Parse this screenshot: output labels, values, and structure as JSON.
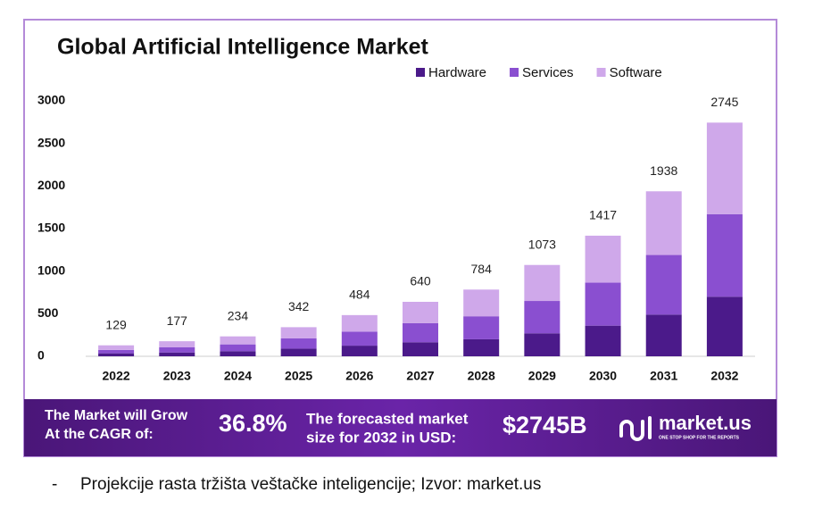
{
  "chart_data": {
    "type": "stacked_bar",
    "title": "Global Artificial Intelligence Market",
    "categories": [
      "2022",
      "2023",
      "2024",
      "2025",
      "2026",
      "2027",
      "2028",
      "2029",
      "2030",
      "2031",
      "2032"
    ],
    "series": [
      {
        "name": "Hardware",
        "color": "#4b1a8a",
        "values": [
          35,
          45,
          60,
          90,
          125,
          165,
          200,
          270,
          360,
          490,
          700
        ]
      },
      {
        "name": "Services",
        "color": "#8a4fd0",
        "values": [
          40,
          60,
          80,
          120,
          165,
          225,
          270,
          380,
          505,
          700,
          970
        ]
      },
      {
        "name": "Software",
        "color": "#cfa8ea",
        "values": [
          54,
          72,
          94,
          132,
          194,
          250,
          314,
          423,
          552,
          748,
          1075
        ]
      }
    ],
    "totals": [
      129,
      177,
      234,
      342,
      484,
      640,
      784,
      1073,
      1417,
      1938,
      2745
    ],
    "ylim": [
      0,
      3000
    ],
    "yticks": [
      0,
      500,
      1000,
      1500,
      2000,
      2500,
      3000
    ],
    "grid": false,
    "legend": "top-right"
  },
  "banner": {
    "cagr_lines": [
      "The Market will Grow",
      "At the CAGR of:"
    ],
    "cagr_value": "36.8%",
    "forecast_lines": [
      "The forecasted market",
      "size for 2032 in USD:"
    ],
    "forecast_value": "$2745B",
    "logo": "market.us",
    "tagline": "ONE STOP SHOP FOR THE REPORTS"
  },
  "caption": {
    "bullet": "-",
    "text": "Projekcije rasta tržišta veštačke inteligencije; Izvor: market.us"
  }
}
